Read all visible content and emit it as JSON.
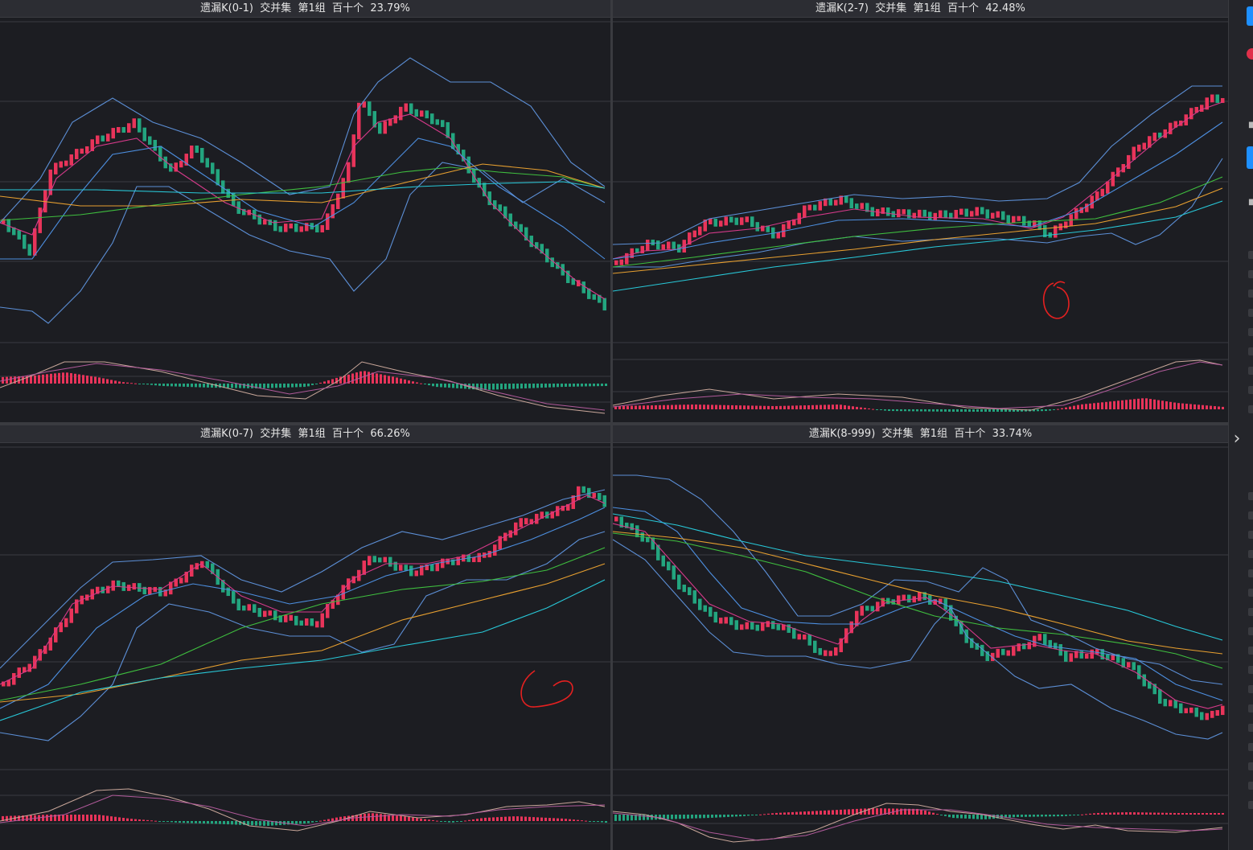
{
  "panels": [
    {
      "title": "遗漏K(0-1)  交并集  第1组  百十个  23.79%"
    },
    {
      "title": "遗漏K(2-7)  交并集  第1组  百十个  42.48%"
    },
    {
      "title": "遗漏K(0-7)  交并集  第1组  百十个  66.26%"
    },
    {
      "title": "遗漏K(8-999)  交并集  第1组  百十个  33.74%"
    }
  ],
  "colors": {
    "up_candle": "#e8345a",
    "down_candle": "#23a57f",
    "ma_magenta": "#d63a8a",
    "ma_blue": "#4d8fe0",
    "boll_band": "#5c8fd6",
    "ma_green": "#3fbf3f",
    "ma_orange": "#e8a030",
    "ma_cyan": "#28c8d8",
    "macd_dif": "#c9a79a",
    "macd_dea": "#b05a9a",
    "grid": "#3a3b42",
    "annotation": "#e52020"
  },
  "sidebar": {
    "icons": [
      "blue-tab-icon",
      "red-dot-icon",
      "chevron-right-icon"
    ]
  }
}
